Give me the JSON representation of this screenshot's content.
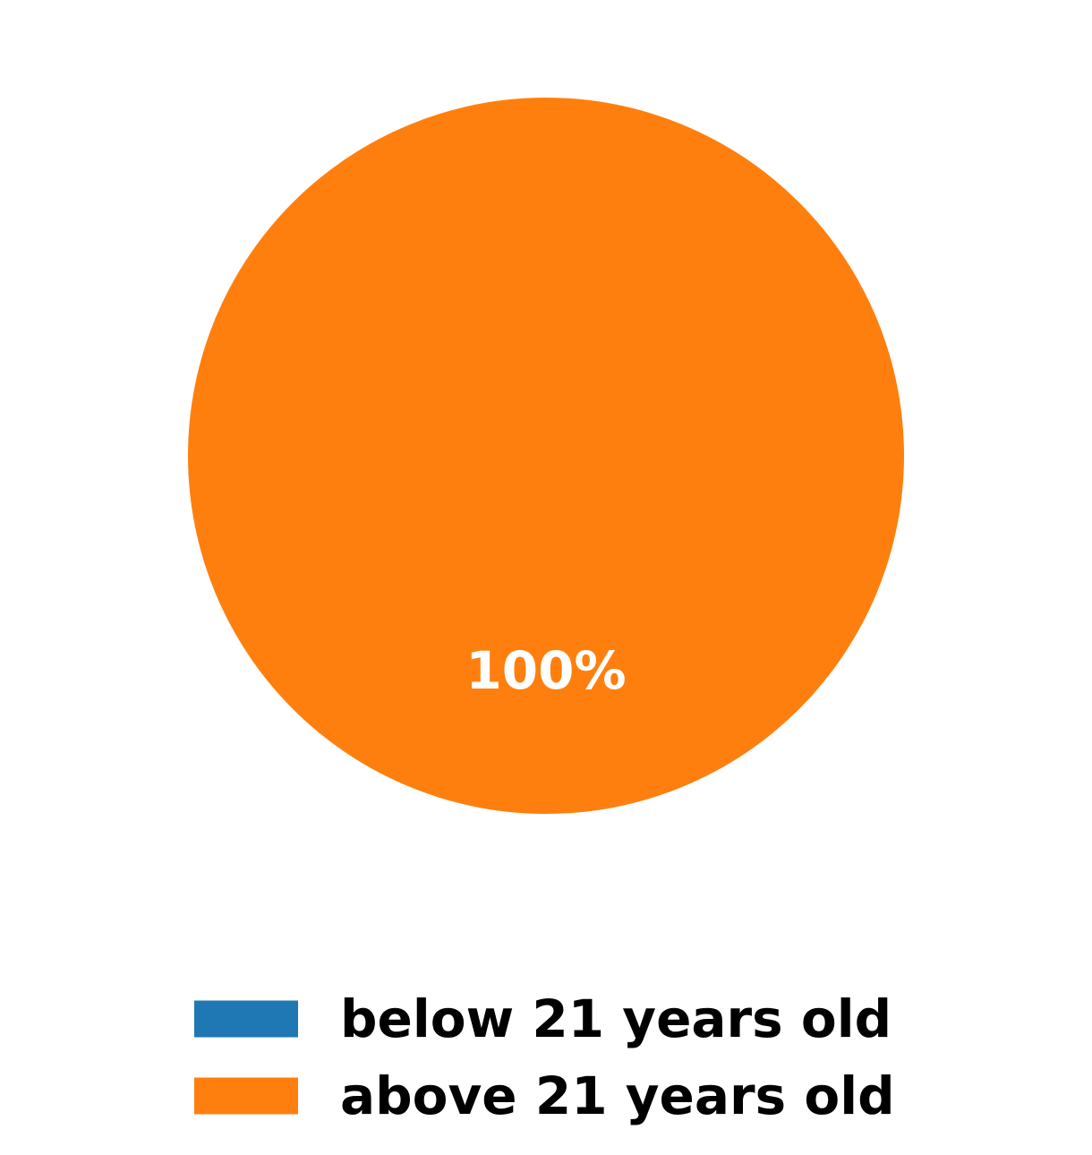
{
  "chart_data": {
    "type": "pie",
    "title": "",
    "categories": [
      "below 21 years old",
      "above 21 years old"
    ],
    "values": [
      0,
      100
    ],
    "percent_labels": [
      "",
      "100%"
    ],
    "colors": [
      "#1f77b4",
      "#ff7f0e"
    ],
    "legend_position": "bottom"
  }
}
